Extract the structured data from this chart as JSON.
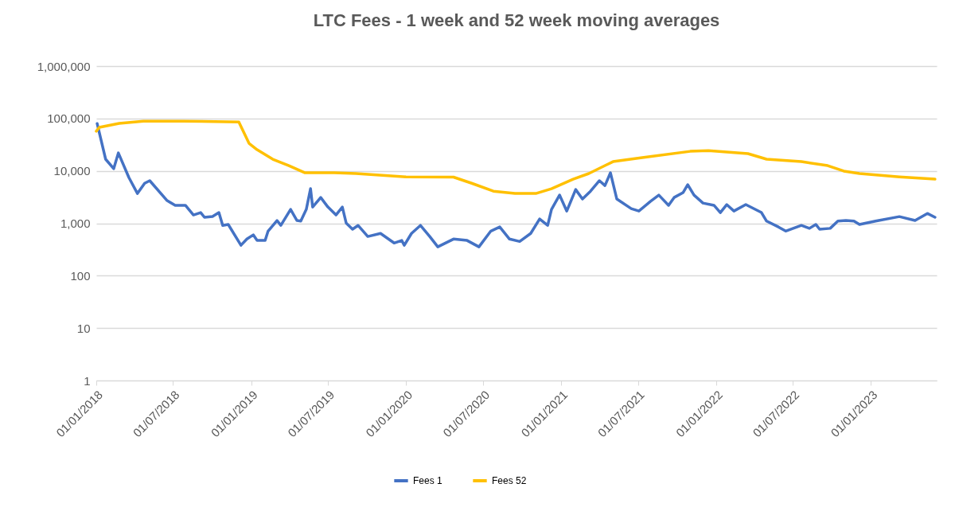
{
  "chart_data": {
    "type": "line",
    "title": "LTC Fees - 1 week and 52 week moving averages",
    "legend": "bottom",
    "grid": "y",
    "log": "y",
    "xlim": [
      "2018-01-01",
      "2023-06-05"
    ],
    "xticks": [
      {
        "value": "2018-01-01",
        "label": "01/01/2018"
      },
      {
        "value": "2018-07-01",
        "label": "01/07/2018"
      },
      {
        "value": "2019-01-01",
        "label": "01/01/2019"
      },
      {
        "value": "2019-07-01",
        "label": "01/07/2019"
      },
      {
        "value": "2020-01-01",
        "label": "01/01/2020"
      },
      {
        "value": "2020-07-01",
        "label": "01/07/2020"
      },
      {
        "value": "2021-01-01",
        "label": "01/01/2021"
      },
      {
        "value": "2021-07-01",
        "label": "01/07/2021"
      },
      {
        "value": "2022-01-01",
        "label": "01/01/2022"
      },
      {
        "value": "2022-07-01",
        "label": "01/07/2022"
      },
      {
        "value": "2023-01-01",
        "label": "01/01/2023"
      }
    ],
    "ylim": [
      1,
      1000000
    ],
    "yticks": [
      1,
      10,
      100,
      {
        "value": 1000,
        "label": "1,000"
      },
      {
        "value": 10000,
        "label": "10,000"
      },
      {
        "value": 100000,
        "label": "100,000"
      },
      {
        "value": 1000000,
        "label": "1,000,000"
      }
    ],
    "series": [
      {
        "name": "Fees 1",
        "color": "#4472c4",
        "x": [
          "2018-01-03",
          "2018-01-23",
          "2018-02-11",
          "2018-02-22",
          "2018-03-19",
          "2018-04-08",
          "2018-04-25",
          "2018-05-07",
          "2018-06-17",
          "2018-07-06",
          "2018-07-30",
          "2018-08-18",
          "2018-09-04",
          "2018-09-13",
          "2018-10-02",
          "2018-10-17",
          "2018-10-26",
          "2018-11-08",
          "2018-12-08",
          "2018-12-22",
          "2019-01-06",
          "2019-01-15",
          "2019-02-03",
          "2019-02-10",
          "2019-03-03",
          "2019-03-12",
          "2019-04-04",
          "2019-04-19",
          "2019-04-28",
          "2019-05-11",
          "2019-05-21",
          "2019-05-26",
          "2019-06-14",
          "2019-07-01",
          "2019-07-20",
          "2019-08-04",
          "2019-08-13",
          "2019-08-28",
          "2019-09-10",
          "2019-10-03",
          "2019-11-02",
          "2019-12-04",
          "2019-12-22",
          "2019-12-28",
          "2020-01-14",
          "2020-02-04",
          "2020-02-26",
          "2020-03-16",
          "2020-04-22",
          "2020-05-24",
          "2020-06-21",
          "2020-07-19",
          "2020-08-09",
          "2020-09-01",
          "2020-09-25",
          "2020-10-21",
          "2020-11-11",
          "2020-11-30",
          "2020-12-09",
          "2020-12-28",
          "2021-01-14",
          "2021-02-04",
          "2021-02-20",
          "2021-03-11",
          "2021-04-01",
          "2021-04-14",
          "2021-04-27",
          "2021-05-12",
          "2021-06-15",
          "2021-07-03",
          "2021-07-30",
          "2021-08-19",
          "2021-09-11",
          "2021-09-24",
          "2021-10-15",
          "2021-10-26",
          "2021-11-10",
          "2021-12-01",
          "2021-12-27",
          "2022-01-11",
          "2022-01-26",
          "2022-02-12",
          "2022-03-12",
          "2022-04-18",
          "2022-04-30",
          "2022-05-28",
          "2022-06-14",
          "2022-07-21",
          "2022-08-09",
          "2022-08-24",
          "2022-09-02",
          "2022-09-27",
          "2022-10-15",
          "2022-11-03",
          "2022-11-22",
          "2022-12-05",
          "2023-01-12",
          "2023-03-09",
          "2023-04-15",
          "2023-05-14",
          "2023-06-01"
        ],
        "values": [
          80000,
          16700,
          11000,
          22000,
          7400,
          3700,
          5800,
          6500,
          2700,
          2200,
          2200,
          1440,
          1600,
          1300,
          1350,
          1600,
          910,
          950,
          380,
          500,
          600,
          470,
          470,
          710,
          1130,
          910,
          1840,
          1130,
          1100,
          1840,
          4570,
          2040,
          3100,
          2040,
          1440,
          2040,
          1010,
          770,
          910,
          560,
          640,
          420,
          470,
          380,
          640,
          910,
          560,
          355,
          500,
          470,
          355,
          710,
          850,
          500,
          450,
          640,
          1210,
          910,
          1840,
          3450,
          1710,
          4400,
          2900,
          4100,
          6500,
          5250,
          9200,
          2900,
          1900,
          1710,
          2600,
          3450,
          2200,
          3100,
          3840,
          5450,
          3450,
          2430,
          2200,
          1600,
          2270,
          1710,
          2270,
          1600,
          1100,
          850,
          710,
          910,
          800,
          950,
          770,
          800,
          1100,
          1130,
          1100,
          950,
          1100,
          1340,
          1130,
          1540,
          1300
        ]
      },
      {
        "name": "Fees 52",
        "color": "#ffc000",
        "x": [
          "2018-01-01",
          "2018-01-08",
          "2018-02-24",
          "2018-04-22",
          "2018-07-24",
          "2018-12-03",
          "2018-12-27",
          "2019-01-15",
          "2019-02-21",
          "2019-03-31",
          "2019-05-08",
          "2019-07-16",
          "2019-09-05",
          "2020-01-01",
          "2020-04-22",
          "2020-06-04",
          "2020-07-25",
          "2020-09-14",
          "2020-11-02",
          "2020-12-09",
          "2021-01-29",
          "2021-03-07",
          "2021-05-03",
          "2021-07-11",
          "2021-11-01",
          "2021-12-14",
          "2022-03-17",
          "2022-04-30",
          "2022-07-21",
          "2022-09-21",
          "2022-10-29",
          "2022-12-05",
          "2023-03-09",
          "2023-06-01"
        ],
        "values": [
          57000,
          67600,
          80500,
          89000,
          89000,
          86000,
          33600,
          25400,
          16700,
          12600,
          9200,
          9200,
          8900,
          7700,
          7600,
          5800,
          4100,
          3700,
          3700,
          4570,
          6950,
          8900,
          15000,
          17900,
          23600,
          24400,
          21300,
          16700,
          15000,
          12600,
          9900,
          8900,
          7700,
          6950
        ]
      }
    ]
  }
}
